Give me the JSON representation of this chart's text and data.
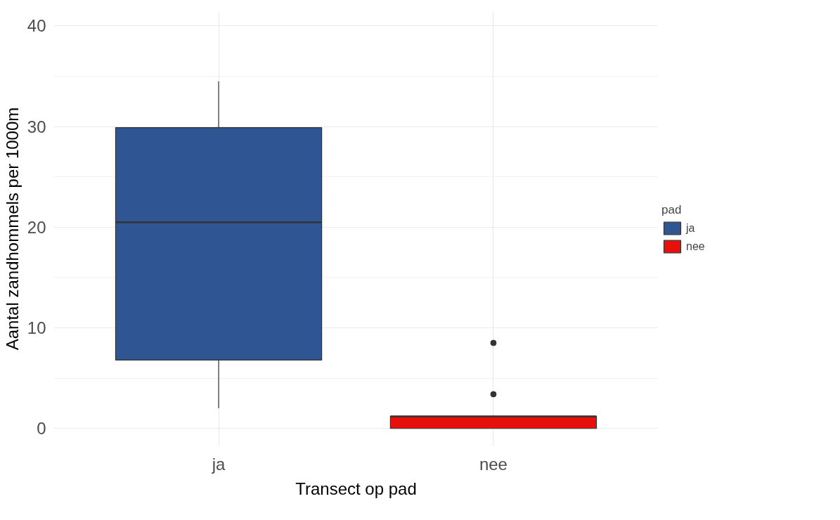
{
  "chart_data": {
    "type": "box",
    "xlabel": "Transect op pad",
    "ylabel": "Aantal zandhommels per 1000m",
    "legend_title": "pad",
    "categories": [
      "ja",
      "nee"
    ],
    "series": [
      {
        "name": "ja",
        "color": "#2f5592",
        "boxes": [
          {
            "low": 2.0,
            "q1": 6.8,
            "median": 20.5,
            "q3": 29.9,
            "high": 34.5
          },
          null
        ]
      },
      {
        "name": "nee",
        "color": "#e8100a",
        "boxes": [
          null,
          {
            "low": 0,
            "q1": 0,
            "median": 1.2,
            "q3": 1.2,
            "high": 1.3,
            "outliers": [
              3.4,
              8.5
            ]
          }
        ]
      }
    ],
    "ylim": [
      -1.8,
      41.5
    ],
    "yticks": [
      0,
      10,
      20,
      30,
      40
    ],
    "grid": true,
    "legend": "right"
  }
}
